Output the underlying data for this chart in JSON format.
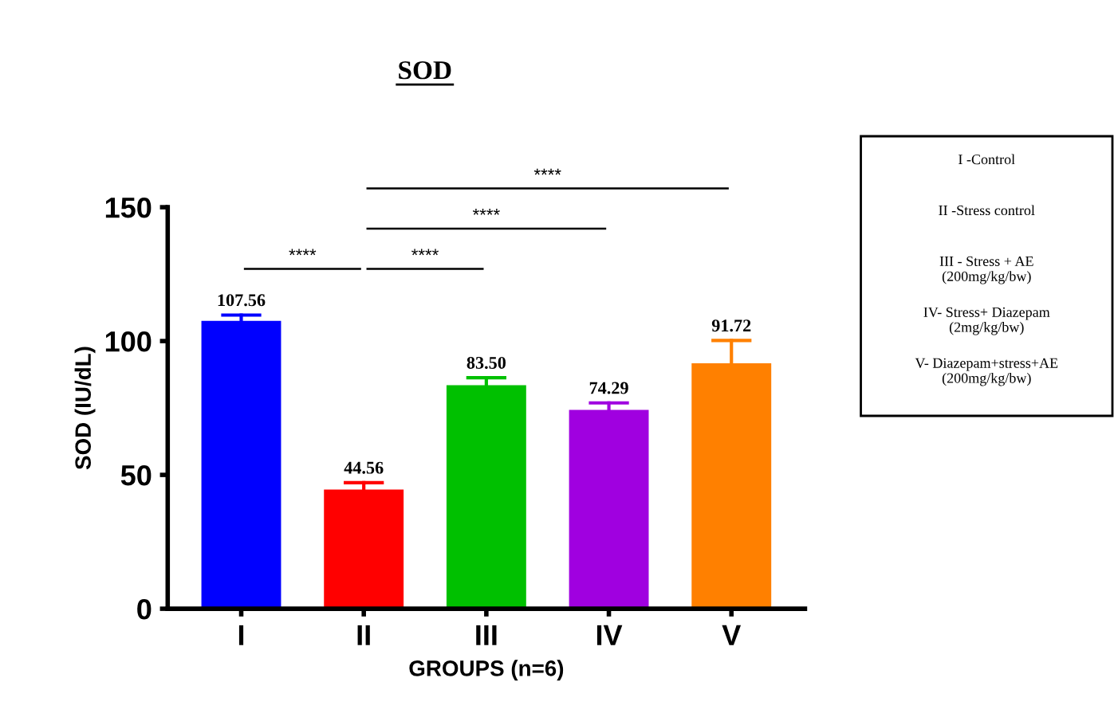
{
  "chart_data": {
    "type": "bar",
    "title": "SOD",
    "xlabel": "GROUPS (n=6)",
    "ylabel": "SOD (IU/dL)",
    "categories": [
      "I",
      "II",
      "III",
      "IV",
      "V"
    ],
    "values": [
      107.56,
      44.56,
      83.5,
      74.29,
      91.72
    ],
    "colors": [
      "#0000ff",
      "#ff0000",
      "#00c000",
      "#a000e0",
      "#ff8000"
    ],
    "errors": [
      [
        107.56,
        109.7
      ],
      [
        44.56,
        47.1
      ],
      [
        83.5,
        86.3
      ],
      [
        74.29,
        76.9
      ],
      [
        91.72,
        100.2
      ]
    ],
    "value_labels": [
      "107.56",
      "44.56",
      "83.50",
      "74.29",
      "91.72"
    ],
    "ylim": [
      0,
      150
    ],
    "yticks": [
      0,
      50,
      100,
      150
    ],
    "grid": false,
    "legend": false,
    "annotations": [
      "****",
      "****",
      "****",
      "****",
      "I -Control",
      "II -Stress control",
      "III - Stress + AE\n(200mg/kg/bw)",
      "IV- Stress+ Diazepam\n(2mg/kg/bw)",
      "V- Diazepam+stress+AE\n(200mg/kg/bw)"
    ]
  }
}
